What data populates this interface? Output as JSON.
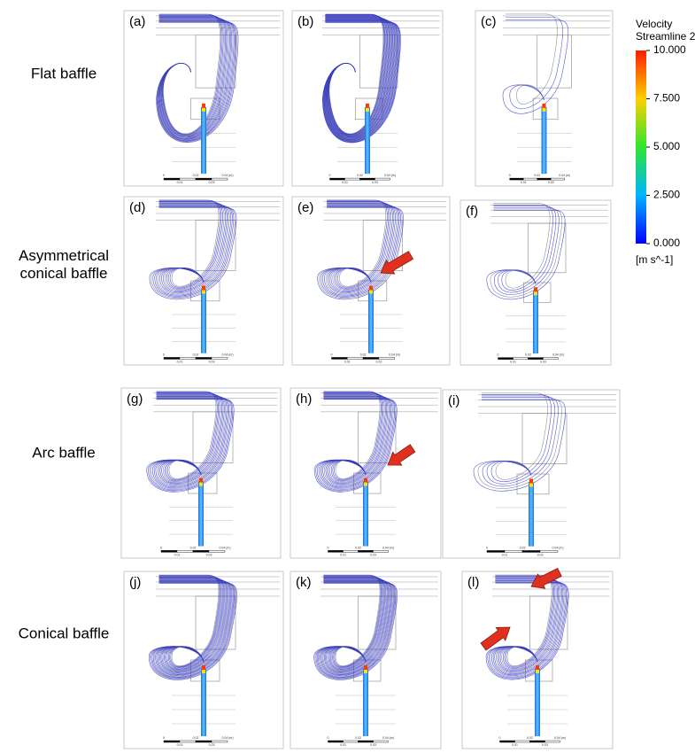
{
  "rows": [
    {
      "label": "Flat baffle",
      "panels": [
        "(a)",
        "(b)",
        "(c)"
      ]
    },
    {
      "label": "Asymmetrical conical baffle",
      "panels": [
        "(d)",
        "(e)",
        "(f)"
      ]
    },
    {
      "label": "Arc baffle",
      "panels": [
        "(g)",
        "(h)",
        "(i)"
      ]
    },
    {
      "label": "Conical baffle",
      "panels": [
        "(j)",
        "(k)",
        "(l)"
      ]
    }
  ],
  "colorbar": {
    "title": "Velocity",
    "subtitle": "Streamline 2",
    "range": [
      0,
      10
    ],
    "ticks": [
      {
        "value": 10,
        "label": "10.000"
      },
      {
        "value": 7.5,
        "label": "7.500"
      },
      {
        "value": 5,
        "label": "5.000"
      },
      {
        "value": 2.5,
        "label": "2.500"
      },
      {
        "value": 0,
        "label": "0.000"
      }
    ],
    "unit": "[m s^-1]"
  },
  "scale_bar": {
    "top": [
      "0",
      "0.02",
      "0.04 (m)"
    ],
    "bottom": [
      "0.01",
      "0.03"
    ]
  }
}
